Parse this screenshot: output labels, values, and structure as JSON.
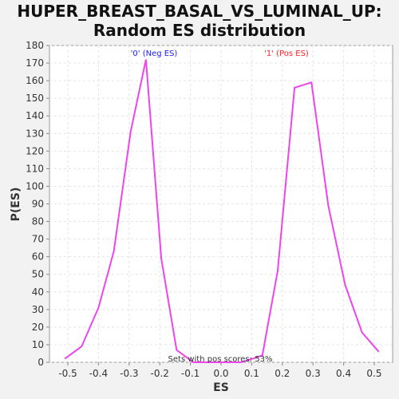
{
  "chart_data": {
    "type": "line",
    "title_line1": "HUPER_BREAST_BASAL_VS_LUMINAL_UP:",
    "title_line2": "Random ES distribution",
    "xlabel": "ES",
    "ylabel": "P(ES)",
    "xlim": [
      -0.56,
      0.56
    ],
    "ylim": [
      0,
      180
    ],
    "x_ticks": [
      -0.5,
      -0.4,
      -0.3,
      -0.2,
      -0.1,
      0.0,
      0.1,
      0.2,
      0.3,
      0.4,
      0.5
    ],
    "y_ticks": [
      0,
      10,
      20,
      30,
      40,
      50,
      60,
      70,
      80,
      90,
      100,
      110,
      120,
      130,
      140,
      150,
      160,
      170,
      180
    ],
    "grid": true,
    "line_color": "#ee44ee",
    "series": [
      {
        "x": [
          -0.51,
          -0.455,
          -0.4,
          -0.35,
          -0.295,
          -0.245,
          -0.195,
          -0.145,
          -0.09,
          -0.04,
          0.01,
          0.065,
          0.12,
          0.135,
          0.185,
          0.24,
          0.295,
          0.35,
          0.405,
          0.46,
          0.515
        ],
        "values": [
          2,
          9,
          31,
          63,
          131,
          172,
          59,
          7,
          0,
          0,
          0,
          0,
          3,
          4,
          52,
          156,
          159,
          89,
          44,
          17,
          6
        ]
      }
    ],
    "annotations": {
      "neg_label": "'0' (Neg ES)",
      "neg_color": "#1a1aff",
      "pos_label": "'1' (Pos ES)",
      "pos_color": "#ff2020",
      "sets_label": "Sets with pos scores: 53%"
    }
  }
}
